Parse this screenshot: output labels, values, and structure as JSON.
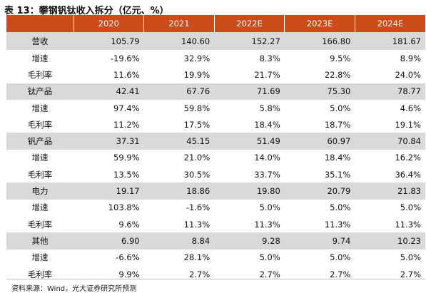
{
  "title": "表 13：攀钢钒钛收入拆分（亿元、%）",
  "table": {
    "headers": [
      "",
      "2020",
      "2021",
      "2022E",
      "2023E",
      "2024E"
    ],
    "rows": [
      {
        "label": "营收",
        "group": true,
        "values": [
          "105.79",
          "140.60",
          "152.27",
          "166.80",
          "181.67"
        ]
      },
      {
        "label": "增速",
        "group": false,
        "values": [
          "-19.6%",
          "32.9%",
          "8.3%",
          "9.5%",
          "8.9%"
        ]
      },
      {
        "label": "毛利率",
        "group": false,
        "values": [
          "11.6%",
          "19.9%",
          "21.7%",
          "22.8%",
          "24.0%"
        ]
      },
      {
        "label": "钛产品",
        "group": true,
        "values": [
          "42.41",
          "67.76",
          "71.69",
          "75.30",
          "78.77"
        ]
      },
      {
        "label": "增速",
        "group": false,
        "values": [
          "97.4%",
          "59.8%",
          "5.8%",
          "5.0%",
          "4.6%"
        ]
      },
      {
        "label": "毛利率",
        "group": false,
        "values": [
          "11.2%",
          "17.5%",
          "18.4%",
          "18.7%",
          "19.1%"
        ]
      },
      {
        "label": "钒产品",
        "group": true,
        "values": [
          "37.31",
          "45.15",
          "51.49",
          "60.97",
          "70.84"
        ]
      },
      {
        "label": "增速",
        "group": false,
        "values": [
          "59.9%",
          "21.0%",
          "14.0%",
          "18.4%",
          "16.2%"
        ]
      },
      {
        "label": "毛利率",
        "group": false,
        "values": [
          "13.5%",
          "30.5%",
          "33.7%",
          "35.1%",
          "36.4%"
        ]
      },
      {
        "label": "电力",
        "group": true,
        "values": [
          "19.17",
          "18.86",
          "19.80",
          "20.79",
          "21.83"
        ]
      },
      {
        "label": "增速",
        "group": false,
        "values": [
          "103.8%",
          "-1.6%",
          "5.0%",
          "5.0%",
          "5.0%"
        ]
      },
      {
        "label": "毛利率",
        "group": false,
        "values": [
          "9.6%",
          "11.3%",
          "11.3%",
          "11.3%",
          "11.3%"
        ]
      },
      {
        "label": "其他",
        "group": true,
        "values": [
          "6.90",
          "8.84",
          "9.28",
          "9.74",
          "10.23"
        ]
      },
      {
        "label": "增速",
        "group": false,
        "values": [
          "-6.6%",
          "28.1%",
          "5.0%",
          "5.0%",
          "5.0%"
        ]
      },
      {
        "label": "毛利率",
        "group": false,
        "values": [
          "9.9%",
          "2.7%",
          "2.7%",
          "2.7%",
          "2.7%"
        ]
      }
    ]
  },
  "source": "资料来源：Wind，光大证券研究所预测",
  "colors": {
    "header_bg": "#cd4a1b",
    "group_row_bg": "#d9d9d9"
  }
}
